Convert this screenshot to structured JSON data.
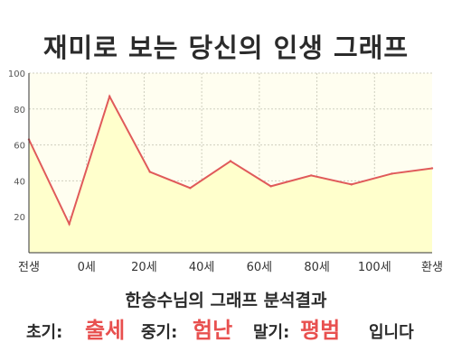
{
  "title": "재미로 보는 당신의 인생 그래프",
  "chart_data": {
    "type": "area",
    "x_labels": [
      "전생",
      "0세",
      "20세",
      "40세",
      "60세",
      "80세",
      "100세",
      "환생"
    ],
    "y_ticks": [
      20,
      40,
      60,
      80,
      100
    ],
    "ylim": [
      0,
      100
    ],
    "values": [
      63,
      16,
      87,
      45,
      36,
      51,
      37,
      43,
      38,
      44,
      47
    ],
    "grid": true,
    "line_color": "#e05a5a",
    "fill_color": "#ffffcc",
    "plot_bg": "#fffef0"
  },
  "summary": {
    "heading": "한승수님의 그래프 분석결과",
    "early_label": "초기:",
    "early_value": "출세",
    "mid_label": "중기:",
    "mid_value": "험난",
    "late_label": "말기:",
    "late_value": "평범",
    "ending": "입니다"
  },
  "colors": {
    "accent": "#e8504f",
    "text": "#2b2b2b"
  }
}
